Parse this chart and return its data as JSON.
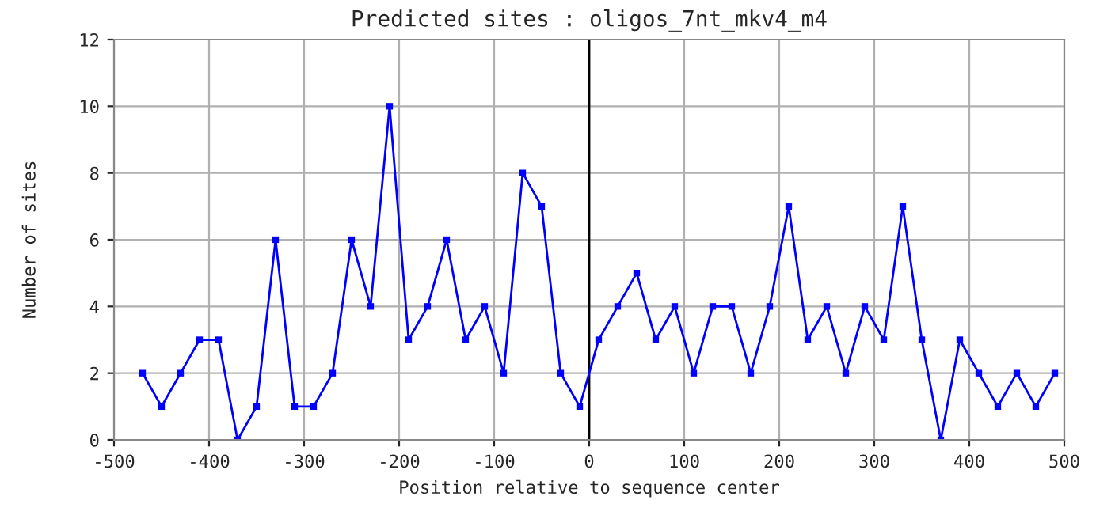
{
  "chart_data": {
    "type": "line",
    "title": "Predicted sites : oligos_7nt_mkv4_m4",
    "xlabel": "Position relative to sequence center",
    "ylabel": "Number of sites",
    "x": [
      -470,
      -450,
      -430,
      -410,
      -390,
      -370,
      -350,
      -330,
      -310,
      -290,
      -270,
      -250,
      -230,
      -210,
      -190,
      -170,
      -150,
      -130,
      -110,
      -90,
      -70,
      -50,
      -30,
      -10,
      10,
      30,
      50,
      70,
      90,
      110,
      130,
      150,
      170,
      190,
      210,
      230,
      250,
      270,
      290,
      310,
      330,
      350,
      370,
      390,
      410,
      430,
      450,
      470,
      490
    ],
    "series": [
      {
        "color": "#0000ff",
        "values": [
          2,
          1,
          2,
          3,
          3,
          0,
          1,
          6,
          1,
          1,
          2,
          6,
          4,
          10,
          3,
          4,
          6,
          3,
          4,
          2,
          8,
          7,
          2,
          1,
          3,
          4,
          5,
          3,
          4,
          2,
          4,
          4,
          2,
          4,
          7,
          3,
          4,
          2,
          4,
          3,
          7,
          3,
          0,
          3,
          2,
          1,
          2,
          1,
          2
        ]
      }
    ],
    "xlim": [
      -500,
      500
    ],
    "ylim": [
      0,
      12
    ],
    "xticks": [
      -500,
      -400,
      -300,
      -200,
      -100,
      0,
      100,
      200,
      300,
      400,
      500
    ],
    "yticks": [
      0,
      2,
      4,
      6,
      8,
      10,
      12
    ],
    "ref_lines": [
      {
        "axis": "x",
        "value": 0,
        "color": "#000000"
      }
    ],
    "grid": true,
    "marker": "square",
    "line_style": "solid",
    "legend": false
  }
}
